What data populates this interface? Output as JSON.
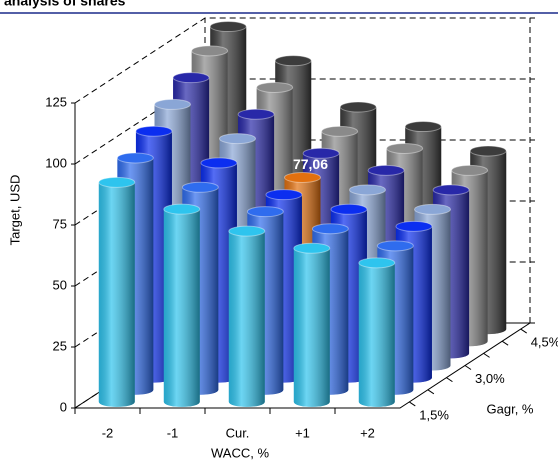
{
  "chart_data": {
    "type": "bar3d",
    "title": "analysis of shares",
    "x_label": "WACC, %",
    "y_label": "Target, USD",
    "z_label": "Gagr, %",
    "categories": [
      "-2",
      "-1",
      "Cur.",
      "+1",
      "+2"
    ],
    "depth_categories": [
      "1,5%",
      null,
      null,
      "3,0%",
      null,
      null,
      "4,5%"
    ],
    "series": [
      {
        "color": "#2ec4ee",
        "values": [
          90,
          79,
          70,
          63,
          57
        ]
      },
      {
        "color": "#2f6cee",
        "values": [
          95,
          83,
          73,
          66,
          59
        ]
      },
      {
        "color": "#0b2ef0",
        "values": [
          101,
          88,
          75,
          69,
          62
        ]
      },
      {
        "color": "#8aa6d6",
        "values": [
          107,
          93,
          77.06,
          72,
          64
        ],
        "value_labels": [
          null,
          null,
          "77,06",
          null,
          null
        ],
        "highlight_color": "#e2700f"
      },
      {
        "color": "#2828a8",
        "values": [
          113,
          98,
          82,
          75,
          67
        ]
      },
      {
        "color": "#8a8a8a",
        "values": [
          119,
          104,
          86,
          79,
          70
        ]
      },
      {
        "color": "#3c3c3c",
        "values": [
          124,
          110,
          91,
          83,
          73
        ]
      }
    ],
    "ylim": [
      0,
      125
    ],
    "yticks": [
      0,
      25,
      50,
      75,
      100,
      125
    ],
    "grid": true
  }
}
